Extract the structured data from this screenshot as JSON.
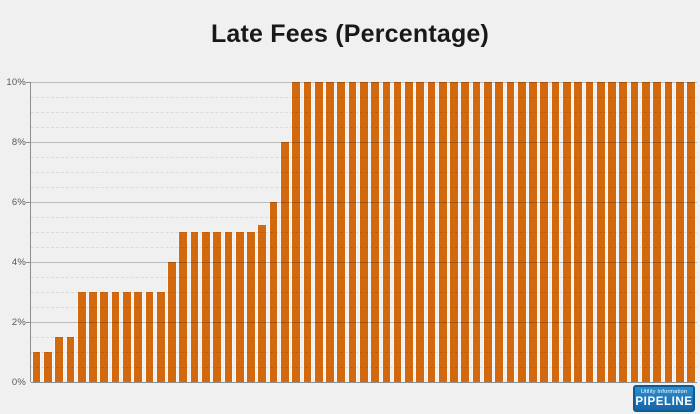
{
  "title": "Late Fees (Percentage)",
  "logo": {
    "line1": "Utility Information",
    "line2": "PIPELINE"
  },
  "colors": {
    "background": "#f0f0f0",
    "bar": "#d2690e",
    "title_text": "#191919",
    "axis_label": "#57585a",
    "axis_line": "#8f8f8f",
    "logo_background": "#1e7fc4",
    "logo_border": "#0d5a94",
    "logo_text": "#ffffff"
  },
  "chart_data": {
    "type": "bar",
    "title": "Late Fees (Percentage)",
    "xlabel": "",
    "ylabel": "",
    "x_labels_visible": false,
    "legend": "none",
    "grid": "on",
    "ylim": [
      0,
      10
    ],
    "major_grid_step": 2,
    "minor_grid_step": 0.5,
    "y_tick_labels": [
      "0%",
      "2%",
      "4%",
      "6%",
      "8%",
      "10%"
    ],
    "y_tick_values": [
      0,
      2,
      4,
      6,
      8,
      10
    ],
    "values": [
      1,
      1,
      1.5,
      1.5,
      3,
      3,
      3,
      3,
      3,
      3,
      3,
      3,
      4,
      5,
      5,
      5,
      5,
      5,
      5,
      5,
      5.25,
      6,
      8,
      10,
      10,
      10,
      10,
      10,
      10,
      10,
      10,
      10,
      10,
      10,
      10,
      10,
      10,
      10,
      10,
      10,
      10,
      10,
      10,
      10,
      10,
      10,
      10,
      10,
      10,
      10,
      10,
      10,
      10,
      10,
      10,
      10,
      10,
      10,
      10
    ]
  }
}
